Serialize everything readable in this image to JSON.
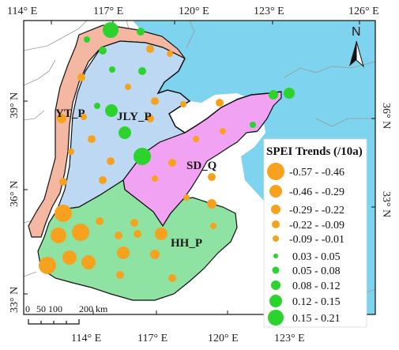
{
  "map": {
    "colors": {
      "sea": "#7ed4ee",
      "land": "#ffffff",
      "YT_P": "#f4b8a2",
      "JLY_P": "#bcd8f2",
      "SD_Q": "#f2a2f2",
      "HH_P": "#8ee2a2",
      "negative_marker": "#f7a21e",
      "positive_marker": "#2dd32d",
      "boundary": "#111111",
      "gray_border": "#9a9a9a"
    },
    "lon_ticks_top": [
      "114° E",
      "117° E",
      "120° E",
      "123° E",
      "126° E"
    ],
    "lon_ticks_bottom": [
      "114° E",
      "117° E",
      "120° E",
      "123° E"
    ],
    "lat_ticks_left": [
      "39° N",
      "36° N",
      "33° N"
    ],
    "lat_ticks_right": [
      "36° N",
      "33° N"
    ],
    "regions": [
      "YT_P",
      "JLY_P",
      "SD_Q",
      "HH_P"
    ],
    "north_arrow": {
      "label": "N",
      "icon": "north-arrow-icon"
    },
    "scale_bar": {
      "labels": [
        "0",
        "50",
        "100",
        "200 km"
      ]
    },
    "legend": {
      "title": "SPEI Trends (/10a)",
      "items": [
        {
          "label": "-0.57 - -0.46",
          "sign": "negative",
          "size_class": 5
        },
        {
          "label": "-0.46 - -0.29",
          "sign": "negative",
          "size_class": 4
        },
        {
          "label": "-0.29 - -0.22",
          "sign": "negative",
          "size_class": 3
        },
        {
          "label": "-0.22 - -0.09",
          "sign": "negative",
          "size_class": 2
        },
        {
          "label": "-0.09 - -0.01",
          "sign": "negative",
          "size_class": 1
        },
        {
          "label": "0.03 - 0.05",
          "sign": "positive",
          "size_class": 1
        },
        {
          "label": "0.05 - 0.08",
          "sign": "positive",
          "size_class": 2
        },
        {
          "label": "0.08 - 0.12",
          "sign": "positive",
          "size_class": 3
        },
        {
          "label": "0.12 - 0.15",
          "sign": "positive",
          "size_class": 4
        },
        {
          "label": "0.15 - 0.21",
          "sign": "positive",
          "size_class": 5
        }
      ]
    }
  }
}
